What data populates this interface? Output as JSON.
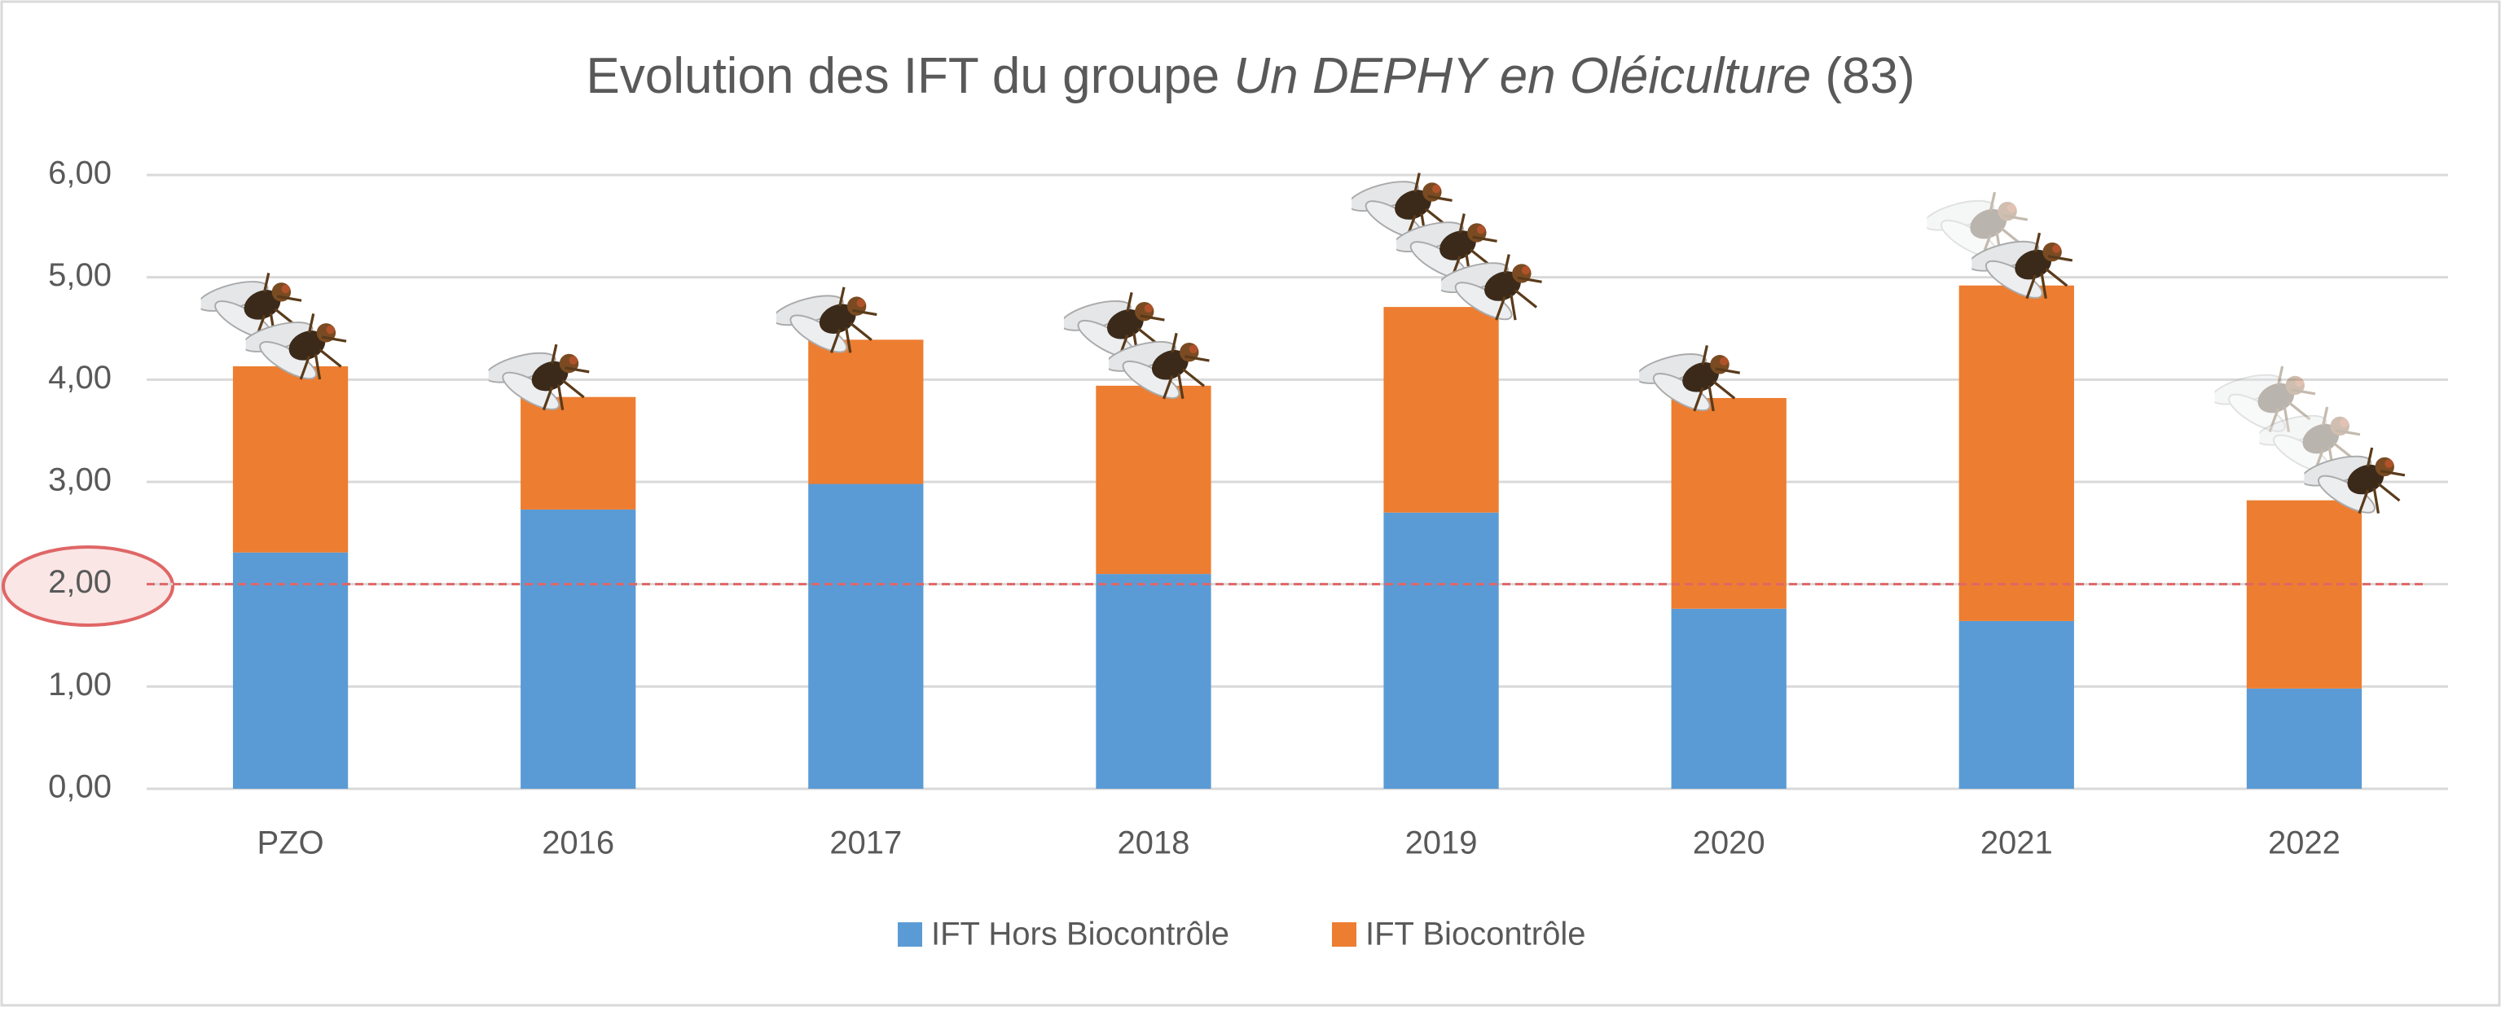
{
  "chart_data": {
    "type": "stacked_bar",
    "title": [
      "Evolution des IFT du groupe",
      "Un DEPHY en Oléiculture",
      "(83)"
    ],
    "categories": [
      "PZO",
      "2016",
      "2017",
      "2018",
      "2019",
      "2020",
      "2021",
      "2022"
    ],
    "series": [
      {
        "name": "IFT Hors Biocontrôle",
        "color": "#5b9bd5",
        "values": [
          2.31,
          2.73,
          2.98,
          2.1,
          2.7,
          1.76,
          1.64,
          0.98
        ]
      },
      {
        "name": "IFT Biocontrôle",
        "color": "#ed7d31",
        "values": [
          1.82,
          1.1,
          1.41,
          1.84,
          2.01,
          2.06,
          3.28,
          1.84
        ]
      }
    ],
    "ylim": [
      0,
      6
    ],
    "yticks": [
      {
        "value": 0,
        "label": "0,00"
      },
      {
        "value": 1,
        "label": "1,00"
      },
      {
        "value": 2,
        "label": "2,00"
      },
      {
        "value": 3,
        "label": "3,00"
      },
      {
        "value": 4,
        "label": "4,00"
      },
      {
        "value": 5,
        "label": "5,00"
      },
      {
        "value": 6,
        "label": "6,00"
      }
    ],
    "grid": true,
    "reference_line": {
      "value": 2,
      "color": "#e06666"
    },
    "legend": "bottom"
  }
}
